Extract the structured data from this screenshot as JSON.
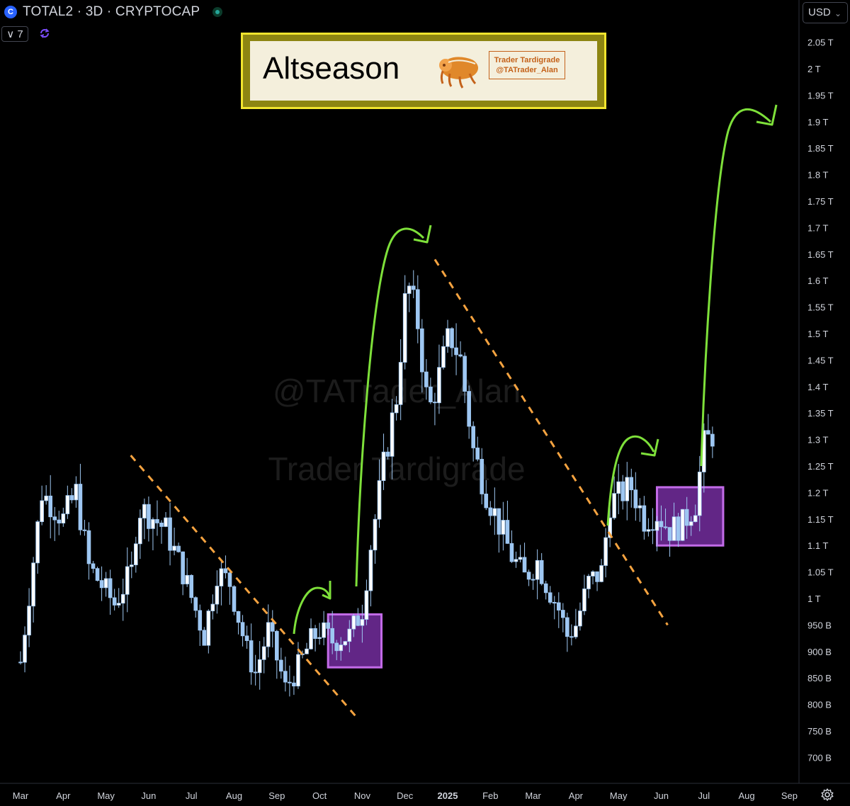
{
  "header": {
    "symbol_title": "TOTAL2 · 3D · CRYPTOCAP",
    "indicators_count": "∨ 7",
    "currency": "USD"
  },
  "banner": {
    "title": "Altseason",
    "badge_line1": "Trader Tardigrade",
    "badge_line2": "@TATrader_Alan"
  },
  "watermark": {
    "line1": "@TATrader_Alan",
    "line2": "Trader Tardigrade"
  },
  "colors": {
    "candle": "#9ec7f2",
    "trendline": "#f5a340",
    "arrow": "#7ee03a",
    "box_fill": "#7b2fa8",
    "box_border": "#c36be8"
  },
  "chart_data": {
    "type": "candlestick",
    "title": "",
    "xlabel": "",
    "ylabel": "",
    "y_unit": "USD",
    "ylim": [
      0.66,
      2.08
    ],
    "y_ticks": [
      {
        "value": 2.05,
        "label": "2.05 T"
      },
      {
        "value": 2.0,
        "label": "2 T"
      },
      {
        "value": 1.95,
        "label": "1.95 T"
      },
      {
        "value": 1.9,
        "label": "1.9 T"
      },
      {
        "value": 1.85,
        "label": "1.85 T"
      },
      {
        "value": 1.8,
        "label": "1.8 T"
      },
      {
        "value": 1.75,
        "label": "1.75 T"
      },
      {
        "value": 1.7,
        "label": "1.7 T"
      },
      {
        "value": 1.65,
        "label": "1.65 T"
      },
      {
        "value": 1.6,
        "label": "1.6 T"
      },
      {
        "value": 1.55,
        "label": "1.55 T"
      },
      {
        "value": 1.5,
        "label": "1.5 T"
      },
      {
        "value": 1.45,
        "label": "1.45 T"
      },
      {
        "value": 1.4,
        "label": "1.4 T"
      },
      {
        "value": 1.35,
        "label": "1.35 T"
      },
      {
        "value": 1.3,
        "label": "1.3 T"
      },
      {
        "value": 1.25,
        "label": "1.25 T"
      },
      {
        "value": 1.2,
        "label": "1.2 T"
      },
      {
        "value": 1.15,
        "label": "1.15 T"
      },
      {
        "value": 1.1,
        "label": "1.1 T"
      },
      {
        "value": 1.05,
        "label": "1.05 T"
      },
      {
        "value": 1.0,
        "label": "1 T"
      },
      {
        "value": 0.95,
        "label": "950 B"
      },
      {
        "value": 0.9,
        "label": "900 B"
      },
      {
        "value": 0.85,
        "label": "850 B"
      },
      {
        "value": 0.8,
        "label": "800 B"
      },
      {
        "value": 0.75,
        "label": "750 B"
      },
      {
        "value": 0.7,
        "label": "700 B"
      }
    ],
    "x_ticks": [
      "Mar",
      "Apr",
      "May",
      "Jun",
      "Jul",
      "Aug",
      "Sep",
      "Oct",
      "Nov",
      "Dec",
      "2025",
      "Feb",
      "Mar",
      "Apr",
      "May",
      "Jun",
      "Jul",
      "Aug",
      "Sep"
    ],
    "x_ticks_bold": [
      "2025"
    ],
    "anchors": [
      {
        "month": 0,
        "close": 0.88
      },
      {
        "month": 0.5,
        "close": 1.2
      },
      {
        "month": 1,
        "close": 1.15
      },
      {
        "month": 1.3,
        "close": 1.2
      },
      {
        "month": 1.6,
        "close": 1.06
      },
      {
        "month": 2.2,
        "close": 0.99
      },
      {
        "month": 2.6,
        "close": 1.05
      },
      {
        "month": 2.75,
        "close": 1.17
      },
      {
        "month": 3,
        "close": 1.16
      },
      {
        "month": 3.4,
        "close": 1.13
      },
      {
        "month": 3.8,
        "close": 1.05
      },
      {
        "month": 4.3,
        "close": 0.93
      },
      {
        "month": 4.6,
        "close": 1.05
      },
      {
        "month": 4.9,
        "close": 1.03
      },
      {
        "month": 5.3,
        "close": 0.9
      },
      {
        "month": 5.5,
        "close": 0.86
      },
      {
        "month": 5.8,
        "close": 0.94
      },
      {
        "month": 6.1,
        "close": 0.86
      },
      {
        "month": 6.2,
        "close": 0.83
      },
      {
        "month": 6.5,
        "close": 0.87
      },
      {
        "month": 6.8,
        "close": 0.92
      },
      {
        "month": 7,
        "close": 0.94
      },
      {
        "month": 7.3,
        "close": 0.92
      },
      {
        "month": 7.7,
        "close": 0.93
      },
      {
        "month": 8,
        "close": 0.98
      },
      {
        "month": 8.2,
        "close": 1.1
      },
      {
        "month": 8.5,
        "close": 1.25
      },
      {
        "month": 8.8,
        "close": 1.38
      },
      {
        "month": 9.05,
        "close": 1.6
      },
      {
        "month": 9.3,
        "close": 1.52
      },
      {
        "month": 9.55,
        "close": 1.35
      },
      {
        "month": 9.8,
        "close": 1.42
      },
      {
        "month": 10.05,
        "close": 1.5
      },
      {
        "month": 10.3,
        "close": 1.45
      },
      {
        "month": 10.6,
        "close": 1.28
      },
      {
        "month": 10.9,
        "close": 1.2
      },
      {
        "month": 11.2,
        "close": 1.14
      },
      {
        "month": 11.5,
        "close": 1.08
      },
      {
        "month": 11.8,
        "close": 1.04
      },
      {
        "month": 12.1,
        "close": 1.07
      },
      {
        "month": 12.3,
        "close": 1.03
      },
      {
        "month": 12.6,
        "close": 0.98
      },
      {
        "month": 12.8,
        "close": 0.93
      },
      {
        "month": 13.0,
        "close": 0.95
      },
      {
        "month": 13.3,
        "close": 1.03
      },
      {
        "month": 13.6,
        "close": 1.05
      },
      {
        "month": 13.8,
        "close": 1.18
      },
      {
        "month": 14.1,
        "close": 1.2
      },
      {
        "month": 14.3,
        "close": 1.21
      },
      {
        "month": 14.6,
        "close": 1.15
      },
      {
        "month": 14.9,
        "close": 1.16
      },
      {
        "month": 15.2,
        "close": 1.13
      },
      {
        "month": 15.5,
        "close": 1.14
      },
      {
        "month": 15.8,
        "close": 1.18
      },
      {
        "month": 16.0,
        "close": 1.29
      },
      {
        "month": 16.2,
        "close": 1.31
      }
    ],
    "trendlines": [
      {
        "from": {
          "month": 2.58,
          "value": 1.27
        },
        "to": {
          "month": 7.93,
          "value": 0.77
        }
      },
      {
        "from": {
          "month": 9.7,
          "value": 1.64
        },
        "to": {
          "month": 15.15,
          "value": 0.95
        }
      }
    ],
    "boxes": [
      {
        "from_month": 7.2,
        "to_month": 8.45,
        "low": 0.87,
        "high": 0.97
      },
      {
        "from_month": 14.9,
        "to_month": 16.45,
        "low": 1.1,
        "high": 1.21
      }
    ]
  }
}
